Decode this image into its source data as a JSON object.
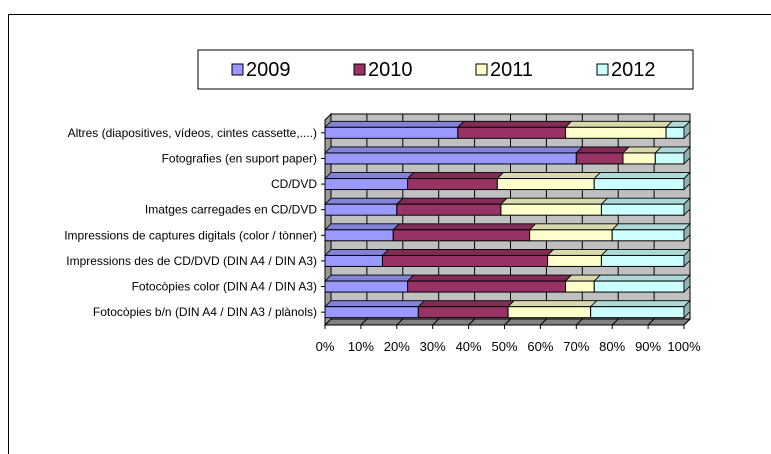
{
  "colors": {
    "2009": "#9999ff",
    "2010": "#993366",
    "2011": "#ffffcc",
    "2012": "#ccffff",
    "plot_wall": "#c0c0c0",
    "plot_floor": "#808080"
  },
  "chart_data": {
    "type": "bar",
    "orientation": "horizontal",
    "stacked": "percent",
    "three_d": true,
    "title": "",
    "xlabel": "",
    "ylabel": "",
    "xlim": [
      0,
      100
    ],
    "x_tick_labels": [
      "0%",
      "10%",
      "20%",
      "30%",
      "40%",
      "50%",
      "60%",
      "70%",
      "80%",
      "90%",
      "100%"
    ],
    "grid": true,
    "legend_position": "top",
    "categories": [
      "Altres (diapositives, vídeos, cintes cassette,....)",
      "Fotografies (en suport paper)",
      "CD/DVD",
      "Imatges carregades en CD/DVD",
      "Impressions de captures digitals (color / tònner)",
      "Impressions des de CD/DVD (DIN A4 / DIN A3)",
      "Fotocòpies color (DIN A4 / DIN A3)",
      "Fotocòpies b/n (DIN A4 / DIN A3 / plànols)"
    ],
    "series": [
      {
        "name": "2009",
        "values": [
          37,
          70,
          23,
          20,
          19,
          16,
          23,
          26
        ]
      },
      {
        "name": "2010",
        "values": [
          30,
          13,
          25,
          29,
          38,
          46,
          44,
          25
        ]
      },
      {
        "name": "2011",
        "values": [
          28,
          9,
          27,
          28,
          23,
          15,
          8,
          23
        ]
      },
      {
        "name": "2012",
        "values": [
          5,
          8,
          25,
          23,
          20,
          23,
          25,
          26
        ]
      }
    ]
  }
}
